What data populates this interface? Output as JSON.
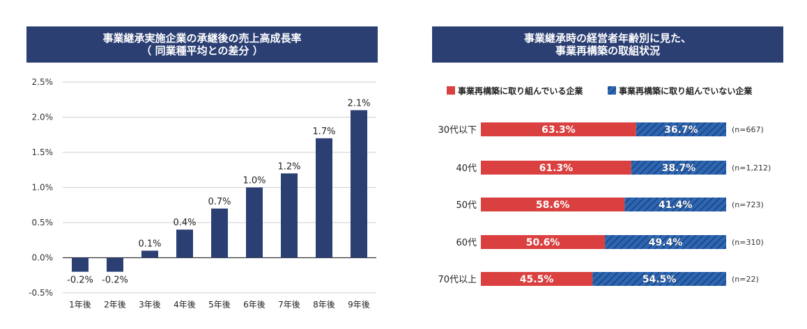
{
  "chart_data": [
    {
      "type": "bar",
      "title": "事業継承実施企業の承継後の売上高成長率",
      "subtitle": "（ 同業種平均との差分 ）",
      "categories": [
        "1年後",
        "2年後",
        "3年後",
        "4年後",
        "5年後",
        "6年後",
        "7年後",
        "8年後",
        "9年後"
      ],
      "values": [
        -0.2,
        -0.2,
        0.1,
        0.4,
        0.7,
        1.0,
        1.2,
        1.7,
        2.1
      ],
      "value_labels": [
        "-0.2%",
        "-0.2%",
        "0.1%",
        "0.4%",
        "0.7%",
        "1.0%",
        "1.2%",
        "1.7%",
        "2.1%"
      ],
      "ylim": [
        -0.5,
        2.5
      ],
      "yticks": [
        2.5,
        2.0,
        1.5,
        1.0,
        0.5,
        0.0,
        -0.5
      ],
      "ytick_labels": [
        "2.5%",
        "2.0%",
        "1.5%",
        "1.0%",
        "0.5%",
        "0.0%",
        "-0.5%"
      ],
      "grid": true,
      "bar_color": "#2b3f73"
    },
    {
      "type": "bar",
      "orientation": "horizontal-stacked-100",
      "title": "事業継承時の経営者年齢別に見た、",
      "subtitle": "事業再構築の取組状況",
      "categories": [
        "30代以下",
        "40代",
        "50代",
        "60代",
        "70代以上"
      ],
      "series": [
        {
          "name": "事業再構築に取り組んでいる企業",
          "values": [
            63.3,
            61.3,
            58.6,
            50.6,
            45.5
          ],
          "labels": [
            "63.3%",
            "61.3%",
            "58.6%",
            "50.6%",
            "45.5%"
          ],
          "color": "#d9403f"
        },
        {
          "name": "事業再構築に取り組んでいない企業",
          "values": [
            36.7,
            38.7,
            41.4,
            49.4,
            54.5
          ],
          "labels": [
            "36.7%",
            "38.7%",
            "41.4%",
            "49.4%",
            "54.5%"
          ],
          "color": "#2b66b4"
        }
      ],
      "n_labels": [
        "(n=667)",
        "(n=1,212)",
        "(n=723)",
        "(n=310)",
        "(n=22)"
      ],
      "legend_position": "top"
    }
  ]
}
